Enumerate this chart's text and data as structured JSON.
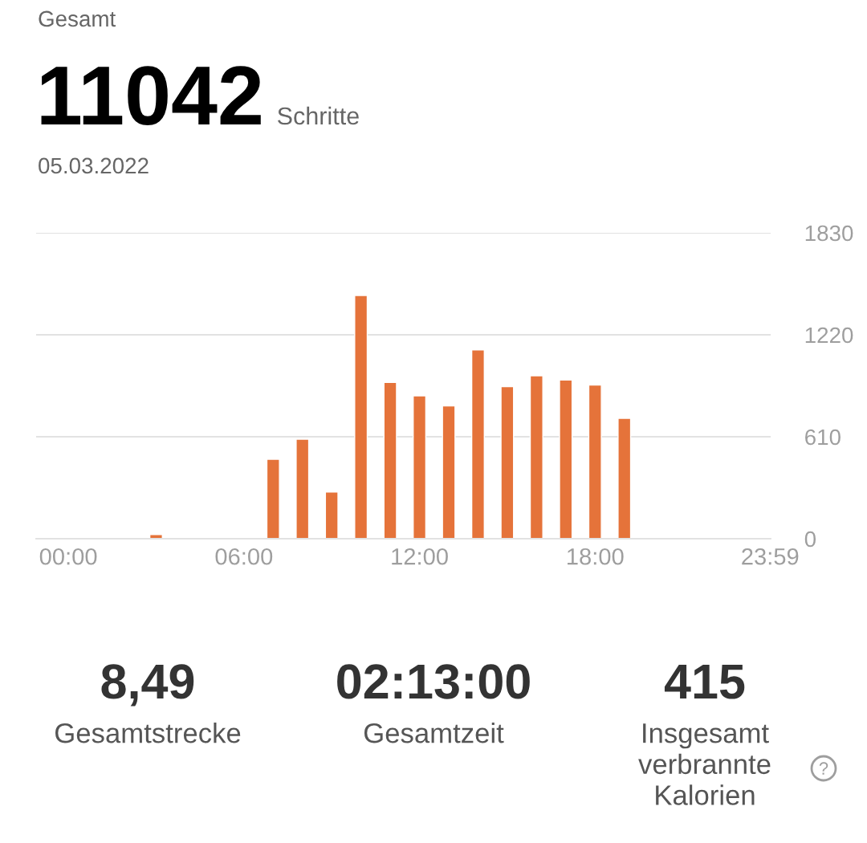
{
  "chart_data": {
    "type": "bar",
    "title": "Gesamt",
    "subtitle": "05.03.2022",
    "annotations": [
      "11042",
      "Schritte",
      "8,49",
      "Gesamtstrecke",
      "02:13:00",
      "Gesamtzeit",
      "415",
      "Insgesamt\nverbrannte\nKalorien"
    ],
    "x": [
      3,
      7,
      8,
      9,
      10,
      11,
      12,
      13,
      14,
      15,
      16,
      17,
      18,
      19
    ],
    "values": [
      25,
      475,
      595,
      280,
      1455,
      935,
      855,
      795,
      1130,
      910,
      975,
      950,
      920,
      720
    ],
    "color": "#e5733a",
    "xlim": [
      -1.1,
      24
    ],
    "xticks": [
      {
        "value": 0,
        "label": "00:00"
      },
      {
        "value": 6,
        "label": "06:00"
      },
      {
        "value": 12,
        "label": "12:00"
      },
      {
        "value": 18,
        "label": "18:00"
      },
      {
        "value": 23.98,
        "label": "23:59"
      }
    ],
    "ylim": [
      0,
      1830
    ],
    "yticks": [
      0,
      610,
      1220,
      1830
    ],
    "grid": "y"
  }
}
